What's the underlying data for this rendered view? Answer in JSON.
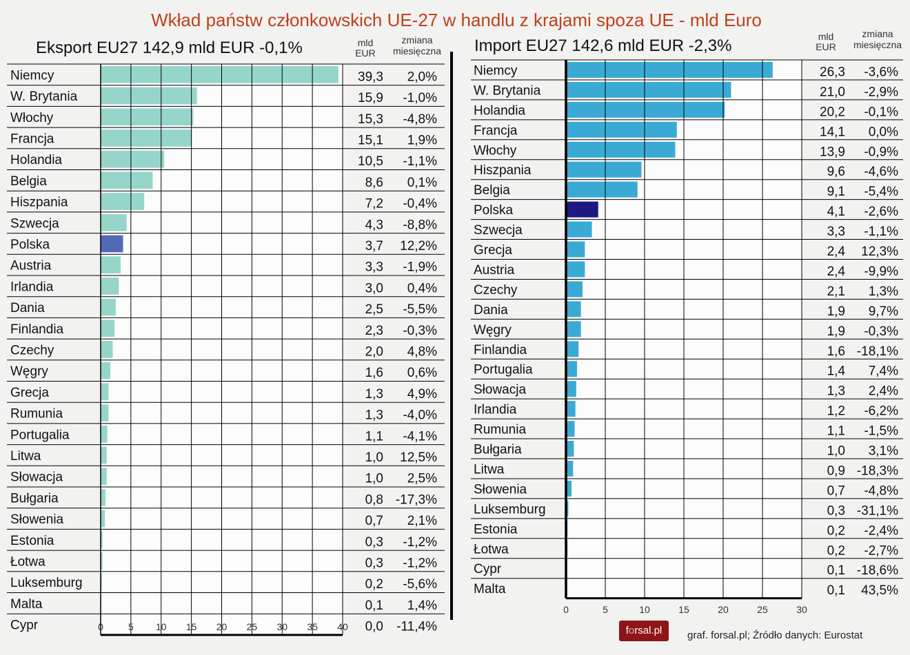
{
  "title": "Wkład państw członkowskich UE-27 w handlu z krajami spoza UE - mld Euro",
  "source": "graf. forsal.pl; Źródło danych: Eurostat",
  "logo_text": "forsal.pl",
  "colors": {
    "title": "#c0401a",
    "export_bar": "#96d5c9",
    "export_highlight": "#5468b8",
    "import_bar": "#3aaad4",
    "import_highlight": "#1c1a80"
  },
  "chart_data": [
    {
      "type": "bar",
      "orientation": "horizontal",
      "title": "Eksport EU27  142,9 mld EUR  -0,1%",
      "col_value_header": [
        "mld",
        "EUR"
      ],
      "col_change_header": [
        "zmiana",
        "miesięczna"
      ],
      "xlim": [
        0,
        40
      ],
      "xticks": [
        0,
        5,
        10,
        15,
        20,
        25,
        30,
        35,
        40
      ],
      "grid": true,
      "highlight": "Polska",
      "categories": [
        "Niemcy",
        "W. Brytania",
        "Włochy",
        "Francja",
        "Holandia",
        "Belgia",
        "Hiszpania",
        "Szwecja",
        "Polska",
        "Austria",
        "Irlandia",
        "Dania",
        "Finlandia",
        "Czechy",
        "Węgry",
        "Grecja",
        "Rumunia",
        "Portugalia",
        "Litwa",
        "Słowacja",
        "Bułgaria",
        "Słowenia",
        "Estonia",
        "Łotwa",
        "Luksemburg",
        "Malta",
        "Cypr"
      ],
      "values": [
        39.3,
        15.9,
        15.3,
        15.1,
        10.5,
        8.6,
        7.2,
        4.3,
        3.7,
        3.3,
        3.0,
        2.5,
        2.3,
        2.0,
        1.6,
        1.3,
        1.3,
        1.1,
        1.0,
        1.0,
        0.8,
        0.7,
        0.3,
        0.3,
        0.2,
        0.1,
        0.0
      ],
      "value_labels": [
        "39,3",
        "15,9",
        "15,3",
        "15,1",
        "10,5",
        "8,6",
        "7,2",
        "4,3",
        "3,7",
        "3,3",
        "3,0",
        "2,5",
        "2,3",
        "2,0",
        "1,6",
        "1,3",
        "1,3",
        "1,1",
        "1,0",
        "1,0",
        "0,8",
        "0,7",
        "0,3",
        "0,3",
        "0,2",
        "0,1",
        "0,0"
      ],
      "changes": [
        "2,0%",
        "-1,0%",
        "-4,8%",
        "1,9%",
        "-1,1%",
        "0,1%",
        "-0,4%",
        "-8,8%",
        "12,2%",
        "-1,9%",
        "0,4%",
        "-5,5%",
        "-0,3%",
        "4,8%",
        "0,6%",
        "4,9%",
        "-4,0%",
        "-4,1%",
        "12,5%",
        "2,5%",
        "-17,3%",
        "2,1%",
        "-1,2%",
        "-1,2%",
        "-5,6%",
        "1,4%",
        "-11,4%"
      ]
    },
    {
      "type": "bar",
      "orientation": "horizontal",
      "title": "Import EU27      142,6 mld EUR  -2,3%",
      "col_value_header": [
        "mld",
        "EUR"
      ],
      "col_change_header": [
        "zmiana",
        "miesięczna"
      ],
      "xlim": [
        0,
        30
      ],
      "xticks": [
        0,
        5,
        10,
        15,
        20,
        25,
        30
      ],
      "grid": true,
      "highlight": "Polska",
      "categories": [
        "Niemcy",
        "W. Brytania",
        "Holandia",
        "Francja",
        "Włochy",
        "Hiszpania",
        "Belgia",
        "Polska",
        "Szwecja",
        "Grecja",
        "Austria",
        "Czechy",
        "Dania",
        "Węgry",
        "Finlandia",
        "Portugalia",
        "Słowacja",
        "Irlandia",
        "Rumunia",
        "Bułgaria",
        "Litwa",
        "Słowenia",
        "Luksemburg",
        "Estonia",
        "Łotwa",
        "Cypr",
        "Malta"
      ],
      "values": [
        26.3,
        21.0,
        20.2,
        14.1,
        13.9,
        9.6,
        9.1,
        4.1,
        3.3,
        2.4,
        2.4,
        2.1,
        1.9,
        1.9,
        1.6,
        1.4,
        1.3,
        1.2,
        1.1,
        1.0,
        0.9,
        0.7,
        0.3,
        0.2,
        0.2,
        0.1,
        0.1
      ],
      "value_labels": [
        "26,3",
        "21,0",
        "20,2",
        "14,1",
        "13,9",
        "9,6",
        "9,1",
        "4,1",
        "3,3",
        "2,4",
        "2,4",
        "2,1",
        "1,9",
        "1,9",
        "1,6",
        "1,4",
        "1,3",
        "1,2",
        "1,1",
        "1,0",
        "0,9",
        "0,7",
        "0,3",
        "0,2",
        "0,2",
        "0,1",
        "0,1"
      ],
      "changes": [
        "-3,6%",
        "-2,9%",
        "-0,1%",
        "0,0%",
        "-0,9%",
        "-4,6%",
        "-5,4%",
        "-2,6%",
        "-1,1%",
        "12,3%",
        "-9,9%",
        "1,3%",
        "9,7%",
        "-0,3%",
        "-18,1%",
        "7,4%",
        "2,4%",
        "-6,2%",
        "-1,5%",
        "3,1%",
        "-18,3%",
        "-4,8%",
        "-31,1%",
        "-2,4%",
        "-2,7%",
        "-18,6%",
        "43,5%"
      ]
    }
  ]
}
